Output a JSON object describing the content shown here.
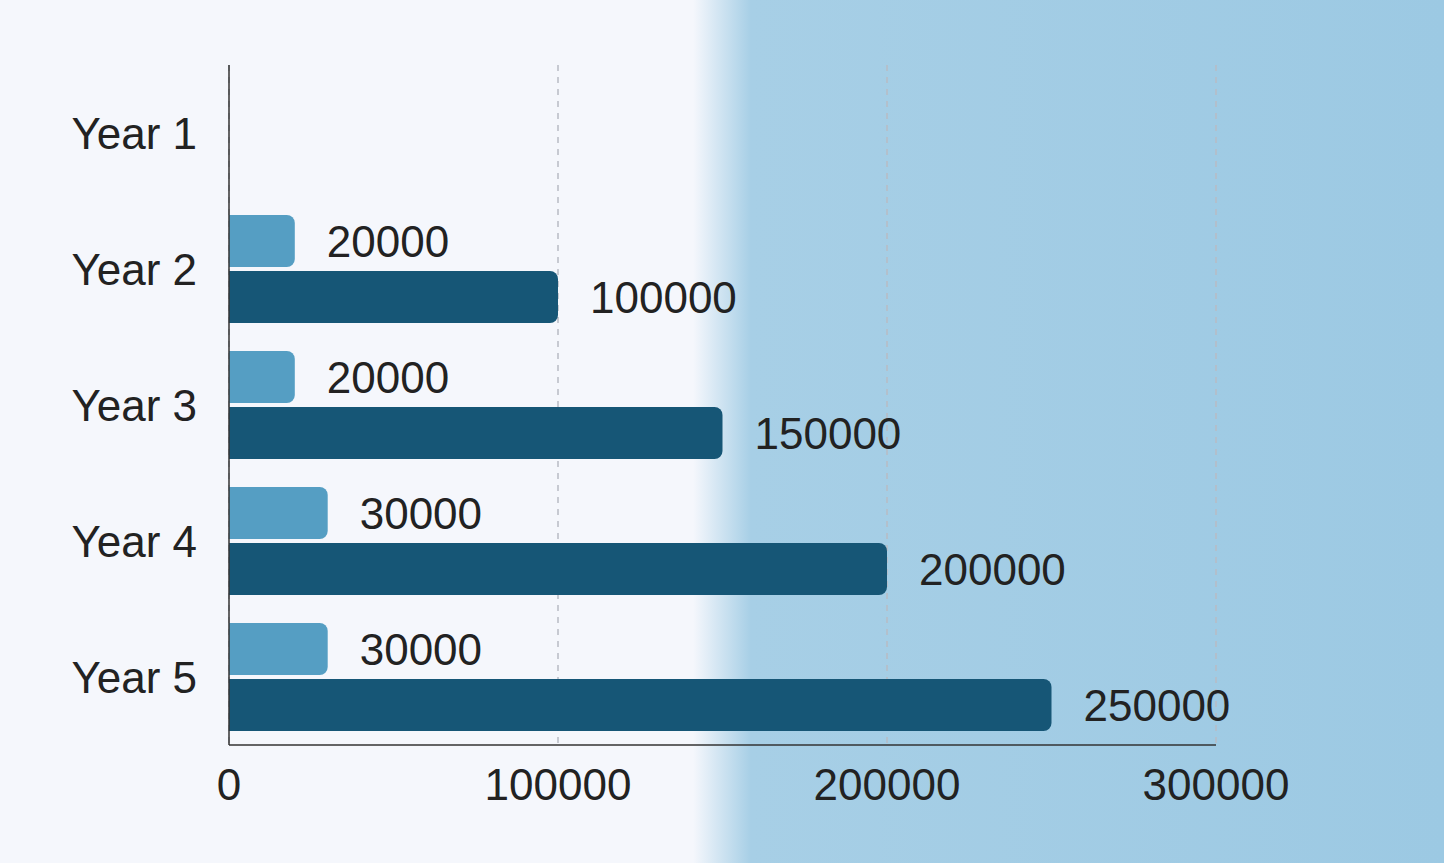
{
  "chart_data": {
    "type": "bar",
    "orientation": "horizontal",
    "categories": [
      "Year 1",
      "Year 2",
      "Year 3",
      "Year 4",
      "Year 5"
    ],
    "series": [
      {
        "color": "#559ec3",
        "values": [
          0,
          20000,
          20000,
          30000,
          30000
        ]
      },
      {
        "color": "#165676",
        "values": [
          0,
          100000,
          150000,
          200000,
          250000
        ]
      }
    ],
    "xlim": [
      0,
      300000
    ],
    "xticks": [
      0,
      100000,
      200000,
      300000
    ],
    "grid": true,
    "data_labels": true
  }
}
